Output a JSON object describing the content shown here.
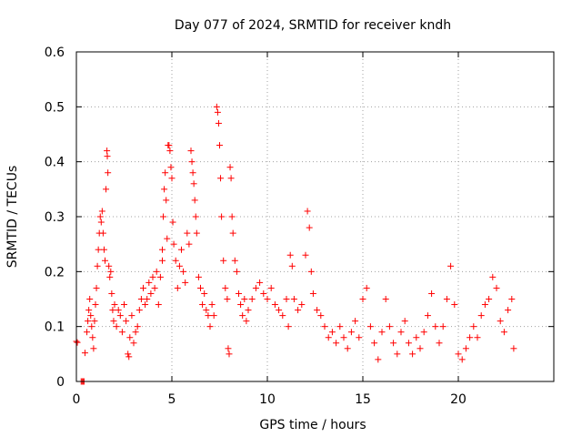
{
  "chart_data": {
    "type": "scatter",
    "title": "Day 077 of 2024, SRMTID for receiver kndh",
    "xlabel": "GPS time / hours",
    "ylabel": "SRMTID / TECUs",
    "xlim": [
      0,
      25
    ],
    "ylim": [
      0,
      0.6
    ],
    "x_ticks": [
      0,
      5,
      10,
      15,
      20
    ],
    "x_tick_labels": [
      "0",
      "5",
      "10",
      "15",
      "20"
    ],
    "y_ticks": [
      0,
      0.1,
      0.2,
      0.3,
      0.4,
      0.5,
      0.6
    ],
    "y_tick_labels": [
      "0",
      "0.1",
      "0.2",
      "0.3",
      "0.4",
      "0.5",
      "0.6"
    ],
    "grid": true,
    "marker": "plus",
    "marker_color": "#ff0000",
    "series": [
      {
        "name": "SRMTID",
        "points": [
          [
            0.0,
            0.073
          ],
          [
            0.05,
            0.071
          ],
          [
            0.25,
            0.0
          ],
          [
            0.3,
            0.0
          ],
          [
            0.35,
            0.0
          ],
          [
            0.4,
            0.0
          ],
          [
            0.45,
            0.052
          ],
          [
            0.55,
            0.09
          ],
          [
            0.6,
            0.11
          ],
          [
            0.65,
            0.13
          ],
          [
            0.7,
            0.15
          ],
          [
            0.75,
            0.12
          ],
          [
            0.8,
            0.1
          ],
          [
            0.85,
            0.08
          ],
          [
            0.9,
            0.06
          ],
          [
            0.95,
            0.11
          ],
          [
            1.0,
            0.14
          ],
          [
            1.05,
            0.17
          ],
          [
            1.1,
            0.21
          ],
          [
            1.15,
            0.24
          ],
          [
            1.2,
            0.27
          ],
          [
            1.25,
            0.3
          ],
          [
            1.3,
            0.29
          ],
          [
            1.35,
            0.31
          ],
          [
            1.4,
            0.27
          ],
          [
            1.45,
            0.24
          ],
          [
            1.5,
            0.22
          ],
          [
            1.55,
            0.35
          ],
          [
            1.6,
            0.42
          ],
          [
            1.62,
            0.41
          ],
          [
            1.65,
            0.38
          ],
          [
            1.7,
            0.21
          ],
          [
            1.75,
            0.19
          ],
          [
            1.8,
            0.2
          ],
          [
            1.85,
            0.16
          ],
          [
            1.9,
            0.13
          ],
          [
            1.95,
            0.11
          ],
          [
            2.0,
            0.14
          ],
          [
            2.1,
            0.1
          ],
          [
            2.2,
            0.13
          ],
          [
            2.3,
            0.12
          ],
          [
            2.4,
            0.09
          ],
          [
            2.5,
            0.14
          ],
          [
            2.6,
            0.11
          ],
          [
            2.7,
            0.05
          ],
          [
            2.75,
            0.045
          ],
          [
            2.8,
            0.08
          ],
          [
            2.9,
            0.12
          ],
          [
            3.0,
            0.07
          ],
          [
            3.1,
            0.09
          ],
          [
            3.2,
            0.1
          ],
          [
            3.3,
            0.13
          ],
          [
            3.4,
            0.15
          ],
          [
            3.5,
            0.17
          ],
          [
            3.6,
            0.14
          ],
          [
            3.7,
            0.15
          ],
          [
            3.8,
            0.18
          ],
          [
            3.9,
            0.16
          ],
          [
            4.0,
            0.19
          ],
          [
            4.1,
            0.17
          ],
          [
            4.2,
            0.2
          ],
          [
            4.3,
            0.14
          ],
          [
            4.4,
            0.19
          ],
          [
            4.5,
            0.22
          ],
          [
            4.5,
            0.24
          ],
          [
            4.55,
            0.3
          ],
          [
            4.6,
            0.35
          ],
          [
            4.65,
            0.38
          ],
          [
            4.7,
            0.33
          ],
          [
            4.75,
            0.26
          ],
          [
            4.8,
            0.43
          ],
          [
            4.85,
            0.43
          ],
          [
            4.9,
            0.42
          ],
          [
            4.95,
            0.39
          ],
          [
            5.0,
            0.37
          ],
          [
            5.05,
            0.29
          ],
          [
            5.1,
            0.25
          ],
          [
            5.2,
            0.22
          ],
          [
            5.3,
            0.17
          ],
          [
            5.4,
            0.21
          ],
          [
            5.5,
            0.24
          ],
          [
            5.6,
            0.2
          ],
          [
            5.7,
            0.18
          ],
          [
            5.8,
            0.27
          ],
          [
            5.9,
            0.25
          ],
          [
            6.0,
            0.42
          ],
          [
            6.05,
            0.4
          ],
          [
            6.1,
            0.38
          ],
          [
            6.15,
            0.36
          ],
          [
            6.2,
            0.33
          ],
          [
            6.25,
            0.3
          ],
          [
            6.3,
            0.27
          ],
          [
            6.4,
            0.19
          ],
          [
            6.5,
            0.17
          ],
          [
            6.6,
            0.14
          ],
          [
            6.7,
            0.16
          ],
          [
            6.8,
            0.13
          ],
          [
            6.9,
            0.12
          ],
          [
            7.0,
            0.1
          ],
          [
            7.1,
            0.14
          ],
          [
            7.2,
            0.12
          ],
          [
            7.35,
            0.5
          ],
          [
            7.4,
            0.49
          ],
          [
            7.45,
            0.47
          ],
          [
            7.5,
            0.43
          ],
          [
            7.55,
            0.37
          ],
          [
            7.6,
            0.3
          ],
          [
            7.7,
            0.22
          ],
          [
            7.8,
            0.17
          ],
          [
            7.9,
            0.15
          ],
          [
            7.95,
            0.06
          ],
          [
            8.0,
            0.05
          ],
          [
            8.05,
            0.39
          ],
          [
            8.1,
            0.37
          ],
          [
            8.15,
            0.3
          ],
          [
            8.2,
            0.27
          ],
          [
            8.3,
            0.22
          ],
          [
            8.4,
            0.2
          ],
          [
            8.5,
            0.16
          ],
          [
            8.6,
            0.14
          ],
          [
            8.7,
            0.12
          ],
          [
            8.8,
            0.15
          ],
          [
            8.9,
            0.11
          ],
          [
            9.0,
            0.13
          ],
          [
            9.2,
            0.15
          ],
          [
            9.4,
            0.17
          ],
          [
            9.6,
            0.18
          ],
          [
            9.8,
            0.16
          ],
          [
            10.0,
            0.15
          ],
          [
            10.2,
            0.17
          ],
          [
            10.4,
            0.14
          ],
          [
            10.6,
            0.13
          ],
          [
            10.8,
            0.12
          ],
          [
            11.0,
            0.15
          ],
          [
            11.1,
            0.1
          ],
          [
            11.2,
            0.23
          ],
          [
            11.3,
            0.21
          ],
          [
            11.4,
            0.15
          ],
          [
            11.6,
            0.13
          ],
          [
            11.8,
            0.14
          ],
          [
            12.0,
            0.23
          ],
          [
            12.1,
            0.31
          ],
          [
            12.2,
            0.28
          ],
          [
            12.3,
            0.2
          ],
          [
            12.4,
            0.16
          ],
          [
            12.6,
            0.13
          ],
          [
            12.8,
            0.12
          ],
          [
            13.0,
            0.1
          ],
          [
            13.2,
            0.08
          ],
          [
            13.4,
            0.09
          ],
          [
            13.6,
            0.07
          ],
          [
            13.8,
            0.1
          ],
          [
            14.0,
            0.08
          ],
          [
            14.2,
            0.06
          ],
          [
            14.4,
            0.09
          ],
          [
            14.6,
            0.11
          ],
          [
            14.8,
            0.08
          ],
          [
            15.0,
            0.15
          ],
          [
            15.2,
            0.17
          ],
          [
            15.4,
            0.1
          ],
          [
            15.6,
            0.07
          ],
          [
            15.8,
            0.04
          ],
          [
            16.0,
            0.09
          ],
          [
            16.2,
            0.15
          ],
          [
            16.4,
            0.1
          ],
          [
            16.6,
            0.07
          ],
          [
            16.8,
            0.05
          ],
          [
            17.0,
            0.09
          ],
          [
            17.2,
            0.11
          ],
          [
            17.4,
            0.07
          ],
          [
            17.6,
            0.05
          ],
          [
            17.8,
            0.08
          ],
          [
            18.0,
            0.06
          ],
          [
            18.2,
            0.09
          ],
          [
            18.4,
            0.12
          ],
          [
            18.6,
            0.16
          ],
          [
            18.8,
            0.1
          ],
          [
            19.0,
            0.07
          ],
          [
            19.2,
            0.1
          ],
          [
            19.4,
            0.15
          ],
          [
            19.6,
            0.21
          ],
          [
            19.8,
            0.14
          ],
          [
            20.0,
            0.05
          ],
          [
            20.2,
            0.04
          ],
          [
            20.4,
            0.06
          ],
          [
            20.6,
            0.08
          ],
          [
            20.8,
            0.1
          ],
          [
            21.0,
            0.08
          ],
          [
            21.2,
            0.12
          ],
          [
            21.4,
            0.14
          ],
          [
            21.6,
            0.15
          ],
          [
            21.8,
            0.19
          ],
          [
            22.0,
            0.17
          ],
          [
            22.2,
            0.11
          ],
          [
            22.4,
            0.09
          ],
          [
            22.6,
            0.13
          ],
          [
            22.8,
            0.15
          ],
          [
            22.9,
            0.06
          ]
        ]
      }
    ]
  }
}
